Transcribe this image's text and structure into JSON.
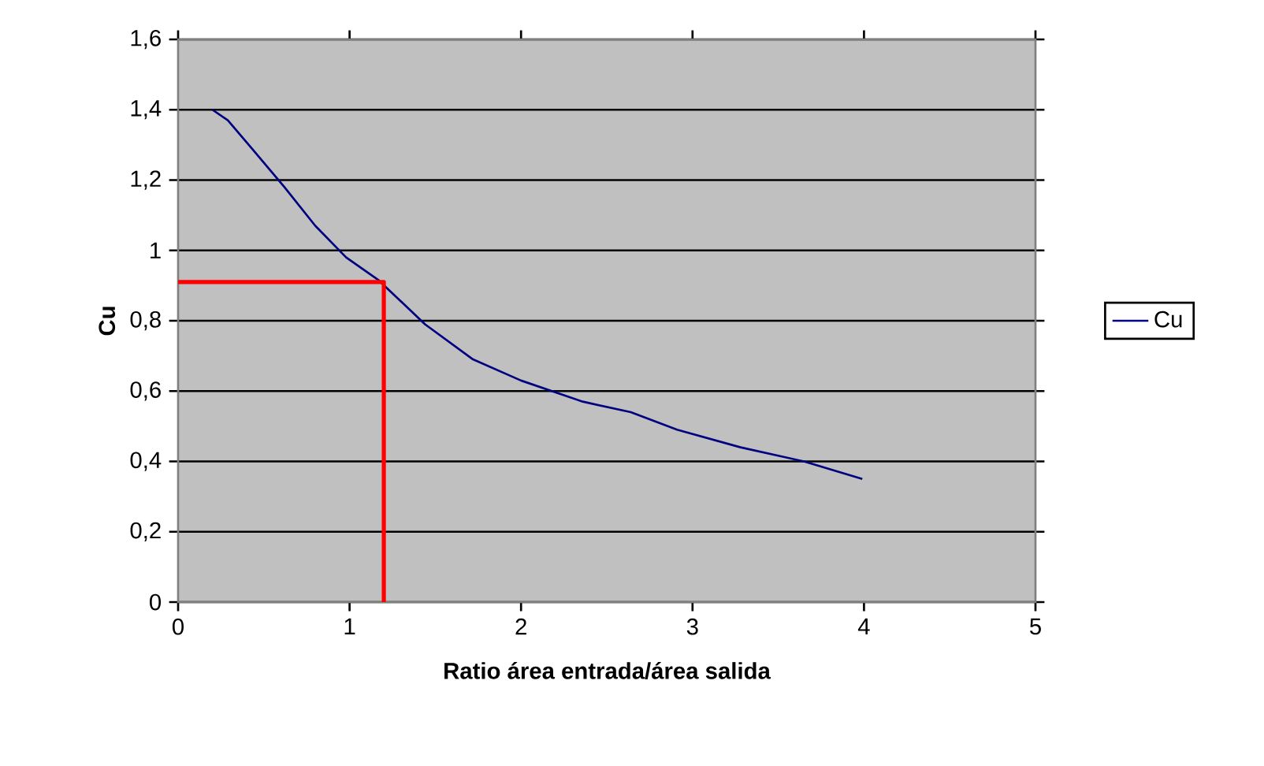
{
  "chart_data": {
    "type": "line",
    "xlabel": "Ratio área entrada/área salida",
    "ylabel": "Cu",
    "xlim": [
      0,
      5
    ],
    "xticks": [
      0,
      1,
      2,
      3,
      4,
      5
    ],
    "ylim": [
      0,
      1.6
    ],
    "yticks": [
      0,
      {
        "value": 0.2,
        "label": "0,2"
      },
      {
        "value": 0.4,
        "label": "0,4"
      },
      {
        "value": 0.6,
        "label": "0,6"
      },
      {
        "value": 0.8,
        "label": "0,8"
      },
      1,
      {
        "value": 1.2,
        "label": "1,2"
      },
      {
        "value": 1.4,
        "label": "1,4"
      },
      {
        "value": 1.6,
        "label": "1,6"
      }
    ],
    "grid": "y",
    "legend": "right",
    "marker": "none",
    "series": [
      {
        "name": "Cu",
        "color": "#000080",
        "x": [
          0.2,
          0.29,
          0.43,
          0.62,
          0.8,
          0.98,
          1.17,
          1.44,
          1.72,
          2.0,
          2.36,
          2.64,
          2.91,
          3.28,
          3.65,
          3.99
        ],
        "values": [
          1.4,
          1.37,
          1.29,
          1.18,
          1.07,
          0.98,
          0.915,
          0.79,
          0.69,
          0.63,
          0.57,
          0.54,
          0.49,
          0.44,
          0.4,
          0.35
        ]
      },
      {
        "color": "#ff0000",
        "x": [
          0,
          1.2,
          1.2
        ],
        "values": [
          0.91,
          0.91,
          0
        ]
      }
    ]
  }
}
